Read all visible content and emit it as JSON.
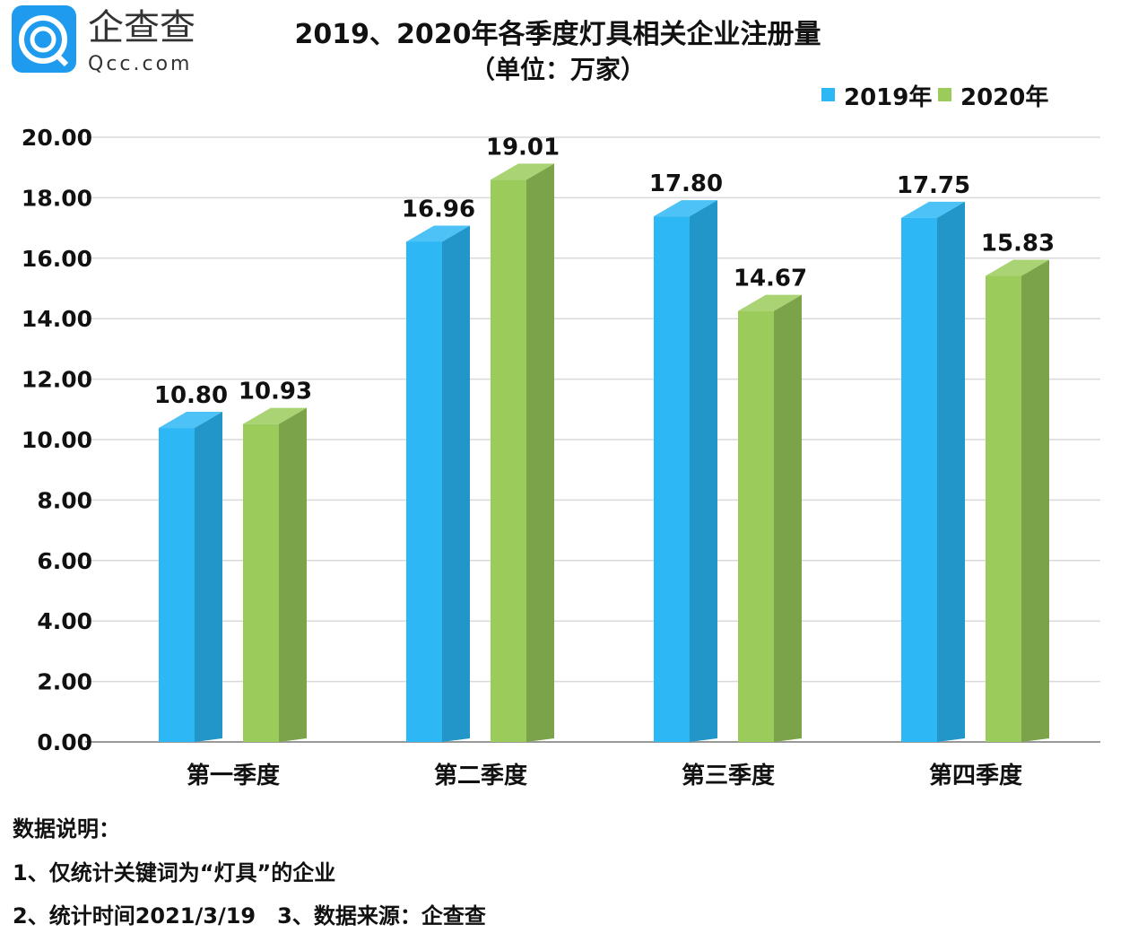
{
  "logo": {
    "text_cn": "企查查",
    "text_en": "Qcc.com",
    "color": "#1E9BEF"
  },
  "chart_data": {
    "type": "bar",
    "title": "2019、2020年各季度灯具相关企业注册量",
    "subtitle": "（单位：万家）",
    "categories": [
      "第一季度",
      "第二季度",
      "第三季度",
      "第四季度"
    ],
    "series": [
      {
        "name": "2019年",
        "values": [
          10.8,
          16.96,
          17.8,
          17.75
        ],
        "color": "#2DB7F5",
        "side_color": "#2396C9"
      },
      {
        "name": "2020年",
        "values": [
          10.93,
          19.01,
          14.67,
          15.83
        ],
        "color": "#9BCB5B",
        "side_color": "#7BA44A"
      }
    ],
    "ylim": [
      0,
      20
    ],
    "yticks": [
      "0.00",
      "2.00",
      "4.00",
      "6.00",
      "8.00",
      "10.00",
      "12.00",
      "14.00",
      "16.00",
      "18.00",
      "20.00"
    ],
    "grid": true,
    "legend_position": "top-right",
    "style": "3d-column"
  },
  "notes": {
    "heading": "数据说明：",
    "line1": "1、仅统计关键词为“灯具”的企业",
    "line2": "2、统计时间2021/3/19　3、数据来源：企查查"
  }
}
